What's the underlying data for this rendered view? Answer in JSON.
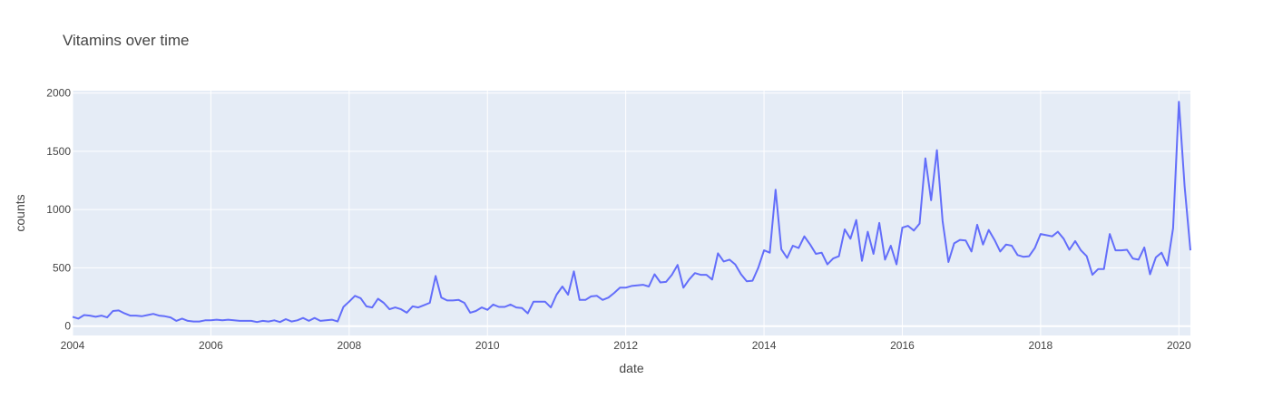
{
  "chart_data": {
    "type": "line",
    "title": "Vitamins over time",
    "xlabel": "date",
    "ylabel": "counts",
    "x_ticks": [
      "2004",
      "2006",
      "2008",
      "2010",
      "2012",
      "2014",
      "2016",
      "2018",
      "2020"
    ],
    "y_ticks": [
      "0",
      "500",
      "1000",
      "1500",
      "2000"
    ],
    "xlim": [
      "2004-01",
      "2020-03"
    ],
    "ylim": [
      -80,
      2020
    ],
    "grid": true,
    "background": "#e5ecf6",
    "line_color": "#636efa",
    "series": [
      {
        "x": [
          "2004-01",
          "2004-02",
          "2004-03",
          "2004-04",
          "2004-05",
          "2004-06",
          "2004-07",
          "2004-08",
          "2004-09",
          "2004-10",
          "2004-11",
          "2004-12",
          "2005-01",
          "2005-02",
          "2005-03",
          "2005-04",
          "2005-05",
          "2005-06",
          "2005-07",
          "2005-08",
          "2005-09",
          "2005-10",
          "2005-11",
          "2005-12",
          "2006-01",
          "2006-02",
          "2006-03",
          "2006-04",
          "2006-05",
          "2006-06",
          "2006-07",
          "2006-08",
          "2006-09",
          "2006-10",
          "2006-11",
          "2006-12",
          "2007-01",
          "2007-02",
          "2007-03",
          "2007-04",
          "2007-05",
          "2007-06",
          "2007-07",
          "2007-08",
          "2007-09",
          "2007-10",
          "2007-11",
          "2007-12",
          "2008-01",
          "2008-02",
          "2008-03",
          "2008-04",
          "2008-05",
          "2008-06",
          "2008-07",
          "2008-08",
          "2008-09",
          "2008-10",
          "2008-11",
          "2008-12",
          "2009-01",
          "2009-02",
          "2009-03",
          "2009-04",
          "2009-05",
          "2009-06",
          "2009-07",
          "2009-08",
          "2009-09",
          "2009-10",
          "2009-11",
          "2009-12",
          "2010-01",
          "2010-02",
          "2010-03",
          "2010-04",
          "2010-05",
          "2010-06",
          "2010-07",
          "2010-08",
          "2010-09",
          "2010-10",
          "2010-11",
          "2010-12",
          "2011-01",
          "2011-02",
          "2011-03",
          "2011-04",
          "2011-05",
          "2011-06",
          "2011-07",
          "2011-08",
          "2011-09",
          "2011-10",
          "2011-11",
          "2011-12",
          "2012-01",
          "2012-02",
          "2012-03",
          "2012-04",
          "2012-05",
          "2012-06",
          "2012-07",
          "2012-08",
          "2012-09",
          "2012-10",
          "2012-11",
          "2012-12",
          "2013-01",
          "2013-02",
          "2013-03",
          "2013-04",
          "2013-05",
          "2013-06",
          "2013-07",
          "2013-08",
          "2013-09",
          "2013-10",
          "2013-11",
          "2013-12",
          "2014-01",
          "2014-02",
          "2014-03",
          "2014-04",
          "2014-05",
          "2014-06",
          "2014-07",
          "2014-08",
          "2014-09",
          "2014-10",
          "2014-11",
          "2014-12",
          "2015-01",
          "2015-02",
          "2015-03",
          "2015-04",
          "2015-05",
          "2015-06",
          "2015-07",
          "2015-08",
          "2015-09",
          "2015-10",
          "2015-11",
          "2015-12",
          "2016-01",
          "2016-02",
          "2016-03",
          "2016-04",
          "2016-05",
          "2016-06",
          "2016-07",
          "2016-08",
          "2016-09",
          "2016-10",
          "2016-11",
          "2016-12",
          "2017-01",
          "2017-02",
          "2017-03",
          "2017-04",
          "2017-05",
          "2017-06",
          "2017-07",
          "2017-08",
          "2017-09",
          "2017-10",
          "2017-11",
          "2017-12",
          "2018-01",
          "2018-02",
          "2018-03",
          "2018-04",
          "2018-05",
          "2018-06",
          "2018-07",
          "2018-08",
          "2018-09",
          "2018-10",
          "2018-11",
          "2018-12",
          "2019-01",
          "2019-02",
          "2019-03",
          "2019-04",
          "2019-05",
          "2019-06",
          "2019-07",
          "2019-08",
          "2019-09",
          "2019-10",
          "2019-11",
          "2019-12",
          "2020-01",
          "2020-02",
          "2020-03"
        ],
        "values": [
          80,
          65,
          95,
          90,
          80,
          90,
          75,
          130,
          135,
          110,
          90,
          90,
          85,
          95,
          105,
          90,
          85,
          75,
          45,
          65,
          45,
          40,
          40,
          50,
          50,
          55,
          50,
          55,
          50,
          45,
          45,
          45,
          35,
          45,
          40,
          50,
          35,
          60,
          40,
          50,
          70,
          45,
          70,
          45,
          50,
          55,
          40,
          165,
          210,
          260,
          240,
          170,
          160,
          235,
          200,
          145,
          160,
          145,
          115,
          170,
          160,
          180,
          200,
          430,
          245,
          220,
          220,
          225,
          200,
          115,
          130,
          160,
          140,
          185,
          165,
          165,
          185,
          160,
          155,
          110,
          210,
          210,
          210,
          160,
          270,
          340,
          270,
          470,
          225,
          225,
          255,
          260,
          225,
          245,
          285,
          330,
          330,
          345,
          350,
          355,
          340,
          445,
          375,
          380,
          440,
          525,
          330,
          400,
          455,
          440,
          440,
          400,
          625,
          555,
          570,
          530,
          445,
          385,
          390,
          500,
          650,
          630,
          1170,
          660,
          585,
          690,
          670,
          770,
          700,
          620,
          630,
          530,
          580,
          600,
          830,
          750,
          910,
          560,
          810,
          620,
          885,
          570,
          690,
          530,
          845,
          860,
          820,
          880,
          1440,
          1080,
          1510,
          900,
          550,
          710,
          740,
          735,
          640,
          870,
          700,
          825,
          740,
          640,
          700,
          690,
          610,
          595,
          600,
          670,
          790,
          780,
          770,
          810,
          750,
          655,
          730,
          650,
          600,
          440,
          490,
          490,
          790,
          650,
          650,
          655,
          580,
          570,
          675,
          445,
          590,
          630,
          520,
          840,
          1925,
          1200,
          650
        ]
      }
    ]
  }
}
